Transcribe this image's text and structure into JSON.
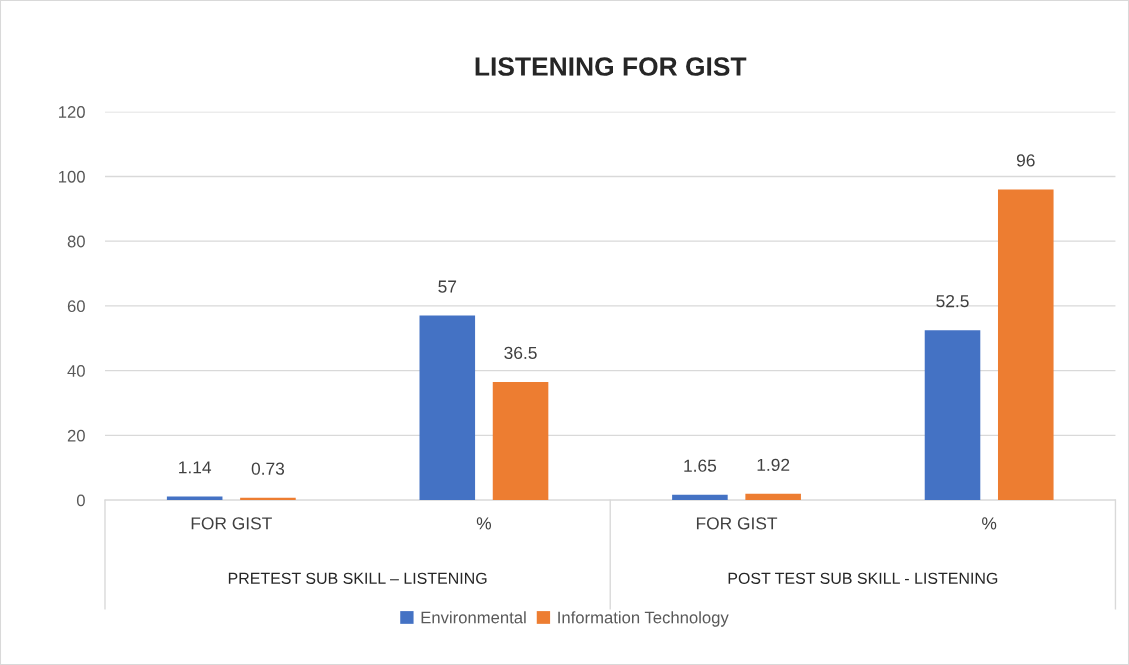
{
  "chart_data": {
    "type": "bar",
    "title": "LISTENING FOR GIST",
    "categories": [
      "FOR GIST",
      "%",
      "FOR GIST",
      "%"
    ],
    "annotations": [
      "PRETEST SUB SKILL – LISTENING",
      "POST TEST SUB SKILL - LISTENING"
    ],
    "series": [
      {
        "name": "Environmental",
        "color": "#4472c4",
        "values": [
          1.14,
          57,
          1.65,
          52.5
        ]
      },
      {
        "name": "Information Technology",
        "color": "#ed7d31",
        "values": [
          0.73,
          36.5,
          1.92,
          96
        ]
      }
    ],
    "ylim": [
      0,
      120
    ],
    "yticks": [
      0,
      20,
      40,
      60,
      80,
      100,
      120
    ],
    "grid": "y",
    "legend": "bottom",
    "data_labels": true
  }
}
